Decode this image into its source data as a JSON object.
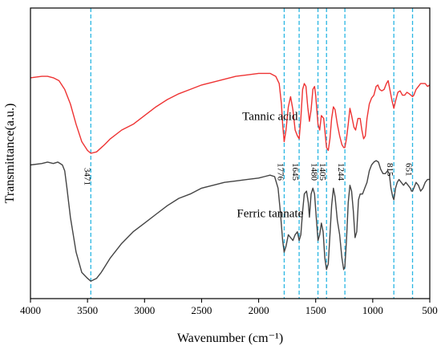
{
  "chart_data": {
    "type": "line",
    "xlabel": "Wavenumber (cm⁻¹)",
    "ylabel": "Transmittance(a.u.)",
    "xlim": [
      4000,
      500
    ],
    "x_reversed": true,
    "y_ticks_shown": false,
    "grid": false,
    "x_ticks": [
      4000,
      3500,
      3000,
      2500,
      2000,
      1500,
      1000,
      500
    ],
    "peak_markers": [
      {
        "x": 3471,
        "label": "3471"
      },
      {
        "x": 1776,
        "label": "1776"
      },
      {
        "x": 1645,
        "label": "1645"
      },
      {
        "x": 1480,
        "label": "1480"
      },
      {
        "x": 1405,
        "label": "1405"
      },
      {
        "x": 1244,
        "label": "1244"
      },
      {
        "x": 815,
        "label": "815"
      },
      {
        "x": 651,
        "label": "651"
      }
    ],
    "series": [
      {
        "name": "Tannic acid",
        "color": "#ee3333",
        "points": [
          [
            4000,
            0.76
          ],
          [
            3900,
            0.765
          ],
          [
            3850,
            0.765
          ],
          [
            3800,
            0.76
          ],
          [
            3750,
            0.75
          ],
          [
            3700,
            0.72
          ],
          [
            3650,
            0.67
          ],
          [
            3600,
            0.6
          ],
          [
            3550,
            0.54
          ],
          [
            3500,
            0.51
          ],
          [
            3471,
            0.5
          ],
          [
            3420,
            0.505
          ],
          [
            3350,
            0.53
          ],
          [
            3300,
            0.55
          ],
          [
            3200,
            0.58
          ],
          [
            3100,
            0.6
          ],
          [
            3000,
            0.63
          ],
          [
            2900,
            0.66
          ],
          [
            2800,
            0.685
          ],
          [
            2700,
            0.705
          ],
          [
            2600,
            0.72
          ],
          [
            2500,
            0.735
          ],
          [
            2400,
            0.745
          ],
          [
            2300,
            0.755
          ],
          [
            2200,
            0.765
          ],
          [
            2100,
            0.77
          ],
          [
            2000,
            0.775
          ],
          [
            1900,
            0.775
          ],
          [
            1850,
            0.765
          ],
          [
            1820,
            0.74
          ],
          [
            1800,
            0.67
          ],
          [
            1790,
            0.6
          ],
          [
            1776,
            0.54
          ],
          [
            1760,
            0.58
          ],
          [
            1740,
            0.66
          ],
          [
            1720,
            0.695
          ],
          [
            1700,
            0.65
          ],
          [
            1680,
            0.58
          ],
          [
            1660,
            0.56
          ],
          [
            1645,
            0.55
          ],
          [
            1630,
            0.62
          ],
          [
            1615,
            0.72
          ],
          [
            1600,
            0.74
          ],
          [
            1585,
            0.73
          ],
          [
            1570,
            0.66
          ],
          [
            1555,
            0.61
          ],
          [
            1540,
            0.65
          ],
          [
            1525,
            0.72
          ],
          [
            1510,
            0.73
          ],
          [
            1500,
            0.7
          ],
          [
            1480,
            0.6
          ],
          [
            1465,
            0.58
          ],
          [
            1450,
            0.63
          ],
          [
            1430,
            0.62
          ],
          [
            1405,
            0.52
          ],
          [
            1390,
            0.51
          ],
          [
            1375,
            0.55
          ],
          [
            1360,
            0.62
          ],
          [
            1345,
            0.66
          ],
          [
            1330,
            0.65
          ],
          [
            1310,
            0.6
          ],
          [
            1290,
            0.56
          ],
          [
            1270,
            0.53
          ],
          [
            1255,
            0.52
          ],
          [
            1244,
            0.52
          ],
          [
            1230,
            0.55
          ],
          [
            1215,
            0.6
          ],
          [
            1200,
            0.655
          ],
          [
            1185,
            0.63
          ],
          [
            1165,
            0.59
          ],
          [
            1150,
            0.58
          ],
          [
            1130,
            0.62
          ],
          [
            1110,
            0.62
          ],
          [
            1095,
            0.58
          ],
          [
            1080,
            0.55
          ],
          [
            1065,
            0.56
          ],
          [
            1050,
            0.62
          ],
          [
            1030,
            0.67
          ],
          [
            1010,
            0.69
          ],
          [
            990,
            0.7
          ],
          [
            970,
            0.73
          ],
          [
            955,
            0.735
          ],
          [
            940,
            0.72
          ],
          [
            920,
            0.715
          ],
          [
            900,
            0.72
          ],
          [
            880,
            0.74
          ],
          [
            865,
            0.75
          ],
          [
            850,
            0.72
          ],
          [
            830,
            0.68
          ],
          [
            815,
            0.655
          ],
          [
            800,
            0.68
          ],
          [
            780,
            0.71
          ],
          [
            760,
            0.715
          ],
          [
            740,
            0.7
          ],
          [
            720,
            0.7
          ],
          [
            700,
            0.71
          ],
          [
            680,
            0.705
          ],
          [
            665,
            0.7
          ],
          [
            651,
            0.695
          ],
          [
            640,
            0.7
          ],
          [
            620,
            0.72
          ],
          [
            600,
            0.73
          ],
          [
            580,
            0.74
          ],
          [
            560,
            0.74
          ],
          [
            540,
            0.74
          ],
          [
            520,
            0.73
          ],
          [
            500,
            0.735
          ]
        ]
      },
      {
        "name": "Ferric tannate",
        "color": "#444444",
        "points": [
          [
            4000,
            0.46
          ],
          [
            3900,
            0.465
          ],
          [
            3850,
            0.47
          ],
          [
            3800,
            0.465
          ],
          [
            3760,
            0.47
          ],
          [
            3720,
            0.46
          ],
          [
            3700,
            0.44
          ],
          [
            3680,
            0.38
          ],
          [
            3650,
            0.28
          ],
          [
            3600,
            0.16
          ],
          [
            3550,
            0.09
          ],
          [
            3500,
            0.07
          ],
          [
            3471,
            0.06
          ],
          [
            3420,
            0.07
          ],
          [
            3380,
            0.09
          ],
          [
            3300,
            0.14
          ],
          [
            3200,
            0.19
          ],
          [
            3100,
            0.23
          ],
          [
            3000,
            0.26
          ],
          [
            2900,
            0.29
          ],
          [
            2800,
            0.32
          ],
          [
            2700,
            0.345
          ],
          [
            2600,
            0.36
          ],
          [
            2500,
            0.38
          ],
          [
            2400,
            0.39
          ],
          [
            2300,
            0.4
          ],
          [
            2200,
            0.405
          ],
          [
            2100,
            0.41
          ],
          [
            2000,
            0.415
          ],
          [
            1950,
            0.42
          ],
          [
            1900,
            0.425
          ],
          [
            1860,
            0.42
          ],
          [
            1830,
            0.38
          ],
          [
            1810,
            0.3
          ],
          [
            1790,
            0.2
          ],
          [
            1776,
            0.16
          ],
          [
            1760,
            0.18
          ],
          [
            1740,
            0.22
          ],
          [
            1720,
            0.21
          ],
          [
            1700,
            0.2
          ],
          [
            1680,
            0.22
          ],
          [
            1660,
            0.23
          ],
          [
            1645,
            0.2
          ],
          [
            1630,
            0.22
          ],
          [
            1615,
            0.3
          ],
          [
            1600,
            0.36
          ],
          [
            1580,
            0.37
          ],
          [
            1565,
            0.33
          ],
          [
            1555,
            0.28
          ],
          [
            1540,
            0.36
          ],
          [
            1525,
            0.38
          ],
          [
            1510,
            0.36
          ],
          [
            1495,
            0.28
          ],
          [
            1480,
            0.2
          ],
          [
            1465,
            0.22
          ],
          [
            1450,
            0.26
          ],
          [
            1435,
            0.23
          ],
          [
            1420,
            0.14
          ],
          [
            1405,
            0.1
          ],
          [
            1390,
            0.12
          ],
          [
            1375,
            0.22
          ],
          [
            1360,
            0.32
          ],
          [
            1345,
            0.38
          ],
          [
            1330,
            0.35
          ],
          [
            1310,
            0.27
          ],
          [
            1290,
            0.22
          ],
          [
            1270,
            0.14
          ],
          [
            1255,
            0.1
          ],
          [
            1244,
            0.11
          ],
          [
            1230,
            0.2
          ],
          [
            1215,
            0.33
          ],
          [
            1200,
            0.39
          ],
          [
            1185,
            0.37
          ],
          [
            1170,
            0.3
          ],
          [
            1155,
            0.21
          ],
          [
            1140,
            0.23
          ],
          [
            1125,
            0.34
          ],
          [
            1110,
            0.36
          ],
          [
            1090,
            0.36
          ],
          [
            1070,
            0.38
          ],
          [
            1050,
            0.4
          ],
          [
            1030,
            0.44
          ],
          [
            1010,
            0.46
          ],
          [
            990,
            0.47
          ],
          [
            970,
            0.475
          ],
          [
            950,
            0.47
          ],
          [
            930,
            0.445
          ],
          [
            910,
            0.43
          ],
          [
            890,
            0.43
          ],
          [
            870,
            0.44
          ],
          [
            855,
            0.43
          ],
          [
            840,
            0.38
          ],
          [
            825,
            0.35
          ],
          [
            815,
            0.34
          ],
          [
            800,
            0.38
          ],
          [
            785,
            0.4
          ],
          [
            770,
            0.41
          ],
          [
            750,
            0.4
          ],
          [
            730,
            0.39
          ],
          [
            710,
            0.4
          ],
          [
            690,
            0.39
          ],
          [
            670,
            0.38
          ],
          [
            660,
            0.37
          ],
          [
            651,
            0.37
          ],
          [
            640,
            0.38
          ],
          [
            620,
            0.4
          ],
          [
            600,
            0.39
          ],
          [
            580,
            0.37
          ],
          [
            560,
            0.38
          ],
          [
            540,
            0.4
          ],
          [
            520,
            0.41
          ],
          [
            500,
            0.41
          ]
        ]
      }
    ],
    "annotations": [
      {
        "text": "Tannic acid",
        "x": 1900,
        "y": 0.615
      },
      {
        "text": "Ferric tannate",
        "x": 1900,
        "y": 0.28
      }
    ],
    "peak_line_color": "#29b6e3",
    "axis_color": "#000000"
  }
}
